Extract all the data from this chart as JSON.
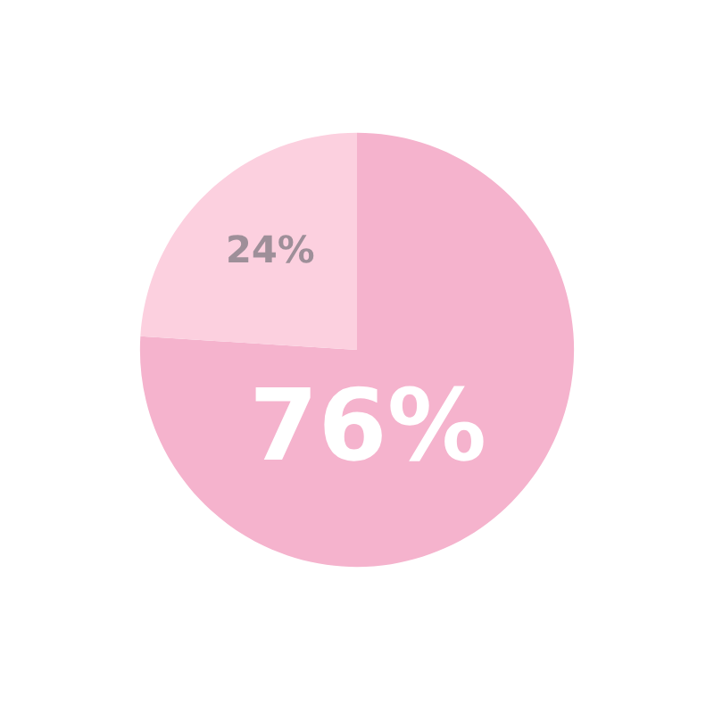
{
  "chart_data": {
    "type": "pie",
    "categories": [
      null,
      null
    ],
    "values": [
      76,
      24
    ],
    "colors": [
      "#f5b3cd",
      "#fcd0df"
    ],
    "value_labels": [
      "76%",
      "24%"
    ]
  }
}
